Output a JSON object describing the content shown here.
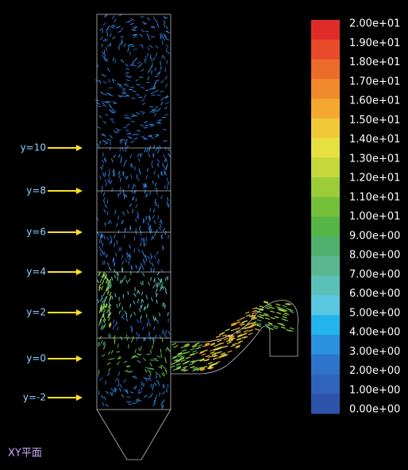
{
  "colorbar": {
    "labels": [
      "2.00e+01",
      "1.90e+01",
      "1.80e+01",
      "1.70e+01",
      "1.60e+01",
      "1.50e+01",
      "1.40e+01",
      "1.30e+01",
      "1.20e+01",
      "1.10e+01",
      "1.00e+01",
      "9.00e+00",
      "8.00e+00",
      "7.00e+00",
      "6.00e+00",
      "5.00e+00",
      "4.00e+00",
      "3.00e+00",
      "2.00e+00",
      "1.00e+00",
      "0.00e+00"
    ],
    "colors": [
      "#e02c28",
      "#e84a2a",
      "#ec6a2a",
      "#f08a2c",
      "#f4a830",
      "#f0c838",
      "#e6e040",
      "#c4d83c",
      "#9ccc3a",
      "#74c03a",
      "#55b545",
      "#4fb070",
      "#5ab890",
      "#5bc0b8",
      "#5ac8e0",
      "#22b4ec",
      "#2a90e0",
      "#2d74cc",
      "#3064bc",
      "#2c52aa"
    ]
  },
  "levels": [
    "y=10",
    "y=8",
    "y=6",
    "y=4",
    "y=2",
    "y=0",
    "y=-2"
  ],
  "plane_label": "XY平面"
}
